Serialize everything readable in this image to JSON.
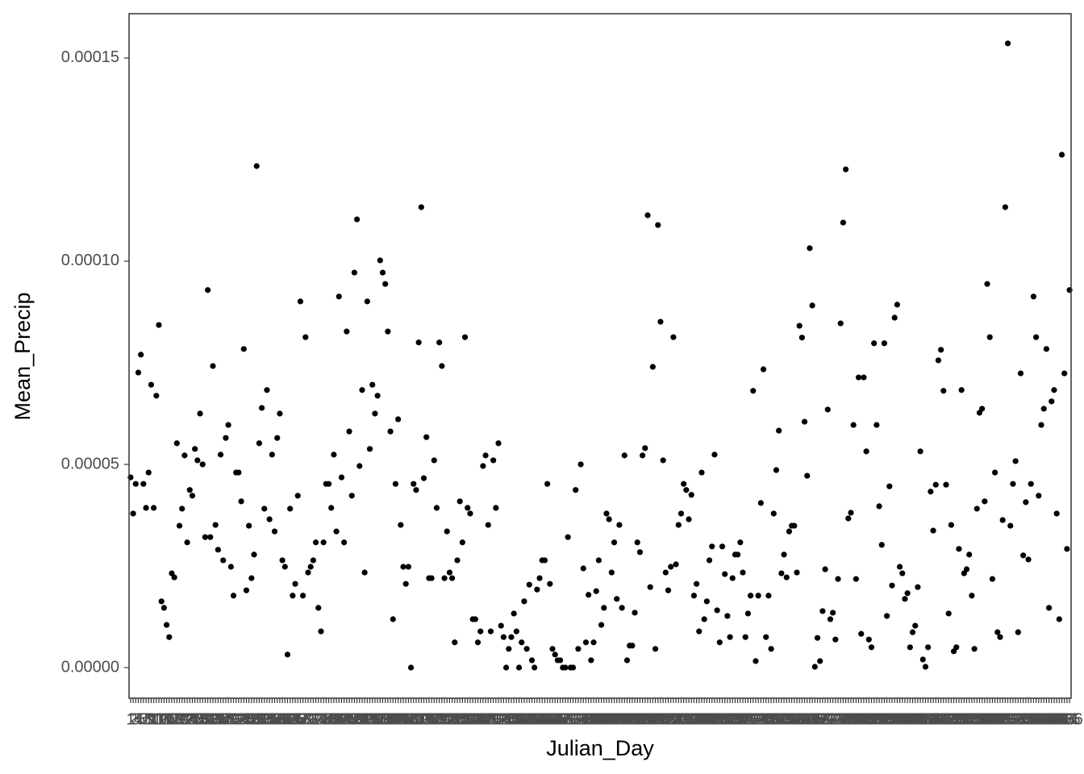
{
  "chart_data": {
    "type": "scatter",
    "xlabel": "Julian_Day",
    "ylabel": "Mean_Precip",
    "color": "#000000",
    "grid": false,
    "xlim": [
      0.4,
      366.6
    ],
    "ylim": [
      -7.54e-06,
      0.0001609
    ],
    "yticks": [
      {
        "value": 0,
        "label": "0.00000"
      },
      {
        "value": 5e-05,
        "label": "0.00005"
      },
      {
        "value": 0.0001,
        "label": "0.00010"
      },
      {
        "value": 0.00015,
        "label": "0.00015"
      }
    ],
    "x": [
      1,
      2,
      3,
      4,
      5,
      6,
      7,
      8,
      9,
      10,
      11,
      12,
      13,
      14,
      15,
      16,
      17,
      18,
      19,
      20,
      21,
      22,
      23,
      24,
      25,
      26,
      27,
      28,
      29,
      30,
      31,
      32,
      33,
      34,
      35,
      36,
      37,
      38,
      39,
      40,
      41,
      42,
      43,
      44,
      45,
      46,
      47,
      48,
      49,
      50,
      51,
      52,
      53,
      54,
      55,
      56,
      57,
      58,
      59,
      60,
      61,
      62,
      63,
      64,
      65,
      66,
      67,
      68,
      69,
      70,
      71,
      72,
      73,
      74,
      75,
      76,
      77,
      78,
      79,
      80,
      81,
      82,
      83,
      84,
      85,
      86,
      87,
      88,
      89,
      90,
      91,
      92,
      93,
      94,
      95,
      96,
      97,
      98,
      99,
      100,
      101,
      102,
      103,
      104,
      105,
      106,
      107,
      108,
      109,
      110,
      111,
      112,
      113,
      114,
      115,
      116,
      117,
      118,
      119,
      120,
      121,
      122,
      123,
      124,
      125,
      126,
      127,
      128,
      129,
      130,
      131,
      132,
      133,
      134,
      135,
      136,
      137,
      138,
      139,
      140,
      141,
      142,
      143,
      144,
      145,
      146,
      147,
      148,
      149,
      150,
      151,
      152,
      153,
      154,
      155,
      156,
      157,
      158,
      159,
      160,
      161,
      162,
      163,
      164,
      165,
      166,
      167,
      168,
      169,
      170,
      171,
      172,
      173,
      174,
      175,
      176,
      177,
      178,
      179,
      180,
      181,
      182,
      183,
      184,
      185,
      186,
      187,
      188,
      189,
      190,
      191,
      192,
      193,
      194,
      195,
      196,
      197,
      198,
      199,
      200,
      201,
      202,
      203,
      204,
      205,
      206,
      207,
      208,
      209,
      210,
      211,
      212,
      213,
      214,
      215,
      216,
      217,
      218,
      219,
      220,
      221,
      222,
      223,
      224,
      225,
      226,
      227,
      228,
      229,
      230,
      231,
      232,
      233,
      234,
      235,
      236,
      237,
      238,
      239,
      240,
      241,
      242,
      243,
      244,
      245,
      246,
      247,
      248,
      249,
      250,
      251,
      252,
      253,
      254,
      255,
      256,
      257,
      258,
      259,
      260,
      261,
      262,
      263,
      264,
      265,
      266,
      267,
      268,
      269,
      270,
      271,
      272,
      273,
      274,
      275,
      276,
      277,
      278,
      279,
      280,
      281,
      282,
      283,
      284,
      285,
      286,
      287,
      288,
      289,
      290,
      291,
      292,
      293,
      294,
      295,
      296,
      297,
      298,
      299,
      300,
      301,
      302,
      303,
      304,
      305,
      306,
      307,
      308,
      309,
      310,
      311,
      312,
      313,
      314,
      315,
      316,
      317,
      318,
      319,
      320,
      321,
      322,
      323,
      324,
      325,
      326,
      327,
      328,
      329,
      330,
      331,
      332,
      333,
      334,
      335,
      336,
      337,
      338,
      339,
      340,
      341,
      342,
      343,
      344,
      345,
      346,
      347,
      348,
      349,
      350,
      351,
      352,
      353,
      354,
      355,
      356,
      357,
      358,
      359,
      360,
      361,
      362,
      363,
      364,
      365,
      366
    ],
    "values": [
      4.68e-05,
      3.79e-05,
      4.52e-05,
      7.26e-05,
      7.7e-05,
      4.52e-05,
      3.93e-05,
      4.8e-05,
      6.96e-05,
      3.93e-05,
      6.69e-05,
      8.43e-05,
      1.63e-05,
      1.47e-05,
      1.05e-05,
      7.5e-06,
      2.32e-05,
      2.22e-05,
      5.52e-05,
      3.49e-05,
      3.91e-05,
      5.22e-05,
      3.08e-05,
      4.37e-05,
      4.23e-05,
      5.38e-05,
      5.1e-05,
      6.25e-05,
      5e-05,
      3.21e-05,
      9.29e-05,
      3.21e-05,
      7.42e-05,
      3.51e-05,
      2.9e-05,
      5.24e-05,
      2.64e-05,
      5.65e-05,
      5.97e-05,
      2.48e-05,
      1.77e-05,
      4.8e-05,
      4.8e-05,
      4.09e-05,
      7.84e-05,
      1.9e-05,
      3.49e-05,
      2.2e-05,
      2.78e-05,
      0.0001234,
      5.52e-05,
      6.39e-05,
      3.91e-05,
      6.83e-05,
      3.65e-05,
      5.24e-05,
      3.35e-05,
      5.65e-05,
      6.25e-05,
      2.64e-05,
      2.48e-05,
      3.2e-06,
      3.91e-05,
      1.77e-05,
      2.06e-05,
      4.23e-05,
      9.01e-05,
      1.77e-05,
      8.13e-05,
      2.34e-05,
      2.48e-05,
      2.64e-05,
      3.08e-05,
      1.47e-05,
      8.9e-06,
      3.08e-05,
      4.52e-05,
      4.52e-05,
      3.93e-05,
      5.24e-05,
      3.35e-05,
      9.13e-05,
      4.68e-05,
      3.08e-05,
      8.27e-05,
      5.81e-05,
      4.23e-05,
      9.72e-05,
      0.0001103,
      4.96e-05,
      6.83e-05,
      2.34e-05,
      9.01e-05,
      5.38e-05,
      6.96e-05,
      6.25e-05,
      6.69e-05,
      0.0001002,
      9.72e-05,
      9.44e-05,
      8.27e-05,
      5.81e-05,
      1.19e-05,
      4.52e-05,
      6.11e-05,
      3.51e-05,
      2.48e-05,
      2.06e-05,
      2.48e-05,
      0,
      4.52e-05,
      4.37e-05,
      8e-05,
      0.0001133,
      4.66e-05,
      5.67e-05,
      2.2e-05,
      2.2e-05,
      5.1e-05,
      3.93e-05,
      8e-05,
      7.42e-05,
      2.2e-05,
      3.35e-05,
      2.34e-05,
      2.2e-05,
      6.2e-06,
      2.64e-05,
      4.09e-05,
      3.08e-05,
      8.13e-05,
      3.93e-05,
      3.79e-05,
      1.19e-05,
      1.19e-05,
      6.2e-06,
      8.9e-06,
      4.96e-05,
      5.22e-05,
      3.51e-05,
      8.9e-06,
      5.1e-05,
      3.93e-05,
      5.52e-05,
      1.03e-05,
      7.5e-06,
      0,
      4.6e-06,
      7.5e-06,
      1.33e-05,
      8.9e-06,
      0,
      6.2e-06,
      1.63e-05,
      4.6e-06,
      2.04e-05,
      1.8e-06,
      0,
      1.92e-05,
      2.2e-05,
      2.64e-05,
      2.64e-05,
      4.52e-05,
      2.06e-05,
      4.6e-06,
      3.2e-06,
      1.8e-06,
      1.8e-06,
      0,
      0,
      3.21e-05,
      0,
      0,
      4.37e-05,
      4.6e-06,
      5e-05,
      2.44e-05,
      6.2e-06,
      1.79e-05,
      1.8e-06,
      6.2e-06,
      1.88e-05,
      2.64e-05,
      1.05e-05,
      1.47e-05,
      3.79e-05,
      3.65e-05,
      2.34e-05,
      3.08e-05,
      1.69e-05,
      3.51e-05,
      1.47e-05,
      5.22e-05,
      1.8e-06,
      5.4e-06,
      5.4e-06,
      1.35e-05,
      3.08e-05,
      2.84e-05,
      5.22e-05,
      5.4e-05,
      0.0001113,
      1.98e-05,
      7.4e-05,
      4.6e-06,
      0.0001089,
      8.51e-05,
      5.1e-05,
      2.34e-05,
      1.9e-05,
      2.48e-05,
      8.13e-05,
      2.54e-05,
      3.51e-05,
      3.79e-05,
      4.52e-05,
      4.37e-05,
      3.65e-05,
      4.25e-05,
      1.77e-05,
      2.06e-05,
      8.9e-06,
      4.8e-05,
      1.19e-05,
      1.63e-05,
      2.64e-05,
      2.98e-05,
      5.24e-05,
      1.41e-05,
      6.2e-06,
      2.98e-05,
      2.3e-05,
      1.27e-05,
      7.5e-06,
      2.2e-05,
      2.78e-05,
      2.78e-05,
      3.08e-05,
      2.34e-05,
      7.5e-06,
      1.33e-05,
      1.77e-05,
      6.81e-05,
      1.6e-06,
      1.77e-05,
      4.05e-05,
      7.34e-05,
      7.5e-06,
      1.77e-05,
      4.6e-06,
      3.79e-05,
      4.86e-05,
      5.83e-05,
      2.32e-05,
      2.78e-05,
      2.22e-05,
      3.35e-05,
      3.49e-05,
      3.49e-05,
      2.34e-05,
      8.41e-05,
      8.12e-05,
      6.05e-05,
      4.72e-05,
      0.0001032,
      8.91e-05,
      2e-07,
      7.3e-06,
      1.6e-06,
      1.39e-05,
      2.42e-05,
      6.35e-05,
      1.19e-05,
      1.35e-05,
      6.9e-06,
      2.18e-05,
      8.47e-05,
      0.0001095,
      0.0001226,
      3.67e-05,
      3.81e-05,
      5.97e-05,
      2.18e-05,
      7.14e-05,
      8.3e-06,
      7.14e-05,
      5.32e-05,
      6.9e-06,
      5e-06,
      7.98e-05,
      5.97e-05,
      3.97e-05,
      3.02e-05,
      7.98e-05,
      1.27e-05,
      4.46e-05,
      2.02e-05,
      8.61e-05,
      8.93e-05,
      2.48e-05,
      2.32e-05,
      1.69e-05,
      1.83e-05,
      5e-06,
      8.7e-06,
      1.03e-05,
      1.98e-05,
      5.32e-05,
      2e-06,
      2e-07,
      5e-06,
      4.33e-05,
      3.37e-05,
      4.5e-05,
      7.56e-05,
      7.82e-05,
      6.81e-05,
      4.5e-05,
      1.33e-05,
      3.51e-05,
      4e-06,
      5e-06,
      2.92e-05,
      6.83e-05,
      2.32e-05,
      2.42e-05,
      2.78e-05,
      1.77e-05,
      4.6e-06,
      3.91e-05,
      6.27e-05,
      6.37e-05,
      4.09e-05,
      9.44e-05,
      8.13e-05,
      2.18e-05,
      4.8e-05,
      8.7e-06,
      7.5e-06,
      3.63e-05,
      0.0001133,
      0.0001536,
      3.49e-05,
      4.52e-05,
      5.08e-05,
      8.7e-06,
      7.24e-05,
      2.76e-05,
      4.07e-05,
      2.66e-05,
      4.52e-05,
      9.13e-05,
      8.13e-05,
      4.23e-05,
      5.97e-05,
      6.37e-05,
      7.84e-05,
      1.47e-05,
      6.55e-05,
      6.83e-05,
      3.79e-05,
      1.19e-05,
      0.0001262,
      7.24e-05,
      2.92e-05,
      9.29e-05
    ]
  }
}
